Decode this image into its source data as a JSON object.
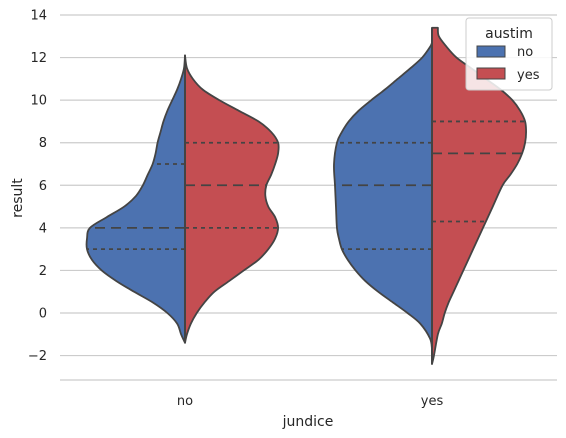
{
  "chart_data": {
    "type": "violin",
    "split": true,
    "xlabel": "jundice",
    "ylabel": "result",
    "ylim": [
      -3.2,
      14
    ],
    "yticks": [
      14,
      12,
      10,
      8,
      6,
      4,
      2,
      0,
      -2
    ],
    "ytick_labels": [
      "14",
      "12",
      "10",
      "8",
      "6",
      "4",
      "2",
      "0",
      "−2"
    ],
    "categories": [
      "no",
      "yes"
    ],
    "grid": "horizontal",
    "legend": {
      "title": "austim",
      "position": "top-right",
      "entries": [
        "no",
        "yes"
      ]
    },
    "colors": {
      "no": "#4c72b0",
      "yes": "#c44e52",
      "outline": "#444444"
    },
    "violins": [
      {
        "category": "no",
        "side": "left",
        "hue": "no",
        "ymin": -1.4,
        "ymax": 12.1,
        "quartiles": [
          3.0,
          4.0,
          7.0
        ],
        "profile": [
          [
            -1.4,
            0.0
          ],
          [
            -1.0,
            0.04
          ],
          [
            -0.5,
            0.08
          ],
          [
            0,
            0.18
          ],
          [
            0.5,
            0.33
          ],
          [
            1.0,
            0.52
          ],
          [
            1.5,
            0.7
          ],
          [
            2.0,
            0.85
          ],
          [
            2.5,
            0.95
          ],
          [
            3.0,
            1.0
          ],
          [
            3.5,
            1.0
          ],
          [
            4.0,
            0.97
          ],
          [
            4.5,
            0.8
          ],
          [
            5.0,
            0.62
          ],
          [
            5.5,
            0.5
          ],
          [
            6.0,
            0.43
          ],
          [
            6.5,
            0.38
          ],
          [
            7.0,
            0.33
          ],
          [
            7.5,
            0.3
          ],
          [
            8.0,
            0.28
          ],
          [
            8.5,
            0.25
          ],
          [
            9.0,
            0.22
          ],
          [
            9.5,
            0.18
          ],
          [
            10.0,
            0.13
          ],
          [
            10.5,
            0.08
          ],
          [
            11.0,
            0.04
          ],
          [
            11.5,
            0.01
          ],
          [
            12.1,
            0.0
          ]
        ]
      },
      {
        "category": "no",
        "side": "right",
        "hue": "yes",
        "ymin": -1.4,
        "ymax": 12.1,
        "quartiles": [
          4.0,
          6.0,
          8.0
        ],
        "profile": [
          [
            -1.4,
            0.0
          ],
          [
            -1.0,
            0.02
          ],
          [
            -0.5,
            0.06
          ],
          [
            0,
            0.12
          ],
          [
            0.5,
            0.2
          ],
          [
            1.0,
            0.3
          ],
          [
            1.5,
            0.45
          ],
          [
            2.0,
            0.6
          ],
          [
            2.5,
            0.75
          ],
          [
            3.0,
            0.85
          ],
          [
            3.5,
            0.92
          ],
          [
            4.0,
            0.95
          ],
          [
            4.5,
            0.92
          ],
          [
            5.0,
            0.85
          ],
          [
            5.5,
            0.82
          ],
          [
            6.0,
            0.83
          ],
          [
            6.5,
            0.88
          ],
          [
            7.0,
            0.92
          ],
          [
            7.5,
            0.95
          ],
          [
            8.0,
            0.95
          ],
          [
            8.5,
            0.88
          ],
          [
            9.0,
            0.75
          ],
          [
            9.5,
            0.55
          ],
          [
            10.0,
            0.35
          ],
          [
            10.5,
            0.18
          ],
          [
            11.0,
            0.08
          ],
          [
            11.5,
            0.02
          ],
          [
            12.1,
            0.0
          ]
        ]
      },
      {
        "category": "yes",
        "side": "left",
        "hue": "no",
        "ymin": -1.7,
        "ymax": 12.7,
        "quartiles": [
          3.0,
          6.0,
          8.0
        ],
        "profile": [
          [
            -1.7,
            0.0
          ],
          [
            -1.2,
            0.02
          ],
          [
            -0.5,
            0.12
          ],
          [
            0,
            0.25
          ],
          [
            0.5,
            0.4
          ],
          [
            1.0,
            0.55
          ],
          [
            1.5,
            0.68
          ],
          [
            2.0,
            0.78
          ],
          [
            2.5,
            0.86
          ],
          [
            3.0,
            0.92
          ],
          [
            3.5,
            0.95
          ],
          [
            4.0,
            0.97
          ],
          [
            5.0,
            0.98
          ],
          [
            6.0,
            0.99
          ],
          [
            7.0,
            1.0
          ],
          [
            8.0,
            0.97
          ],
          [
            8.5,
            0.92
          ],
          [
            9.0,
            0.85
          ],
          [
            9.5,
            0.75
          ],
          [
            10.0,
            0.62
          ],
          [
            10.5,
            0.48
          ],
          [
            11.0,
            0.35
          ],
          [
            11.5,
            0.22
          ],
          [
            12.0,
            0.1
          ],
          [
            12.5,
            0.02
          ],
          [
            12.7,
            0.0
          ]
        ]
      },
      {
        "category": "yes",
        "side": "right",
        "hue": "yes",
        "ymin": -2.4,
        "ymax": 13.4,
        "quartiles": [
          4.3,
          7.5,
          9.0
        ],
        "profile": [
          [
            -2.4,
            0.0
          ],
          [
            -2.0,
            0.02
          ],
          [
            -1.0,
            0.06
          ],
          [
            -0.5,
            0.1
          ],
          [
            0,
            0.13
          ],
          [
            0.5,
            0.17
          ],
          [
            1.0,
            0.22
          ],
          [
            1.5,
            0.27
          ],
          [
            2.0,
            0.32
          ],
          [
            3.0,
            0.42
          ],
          [
            4.0,
            0.52
          ],
          [
            5.0,
            0.62
          ],
          [
            6.0,
            0.72
          ],
          [
            6.5,
            0.8
          ],
          [
            7.0,
            0.87
          ],
          [
            7.5,
            0.92
          ],
          [
            8.0,
            0.95
          ],
          [
            8.5,
            0.96
          ],
          [
            9.0,
            0.95
          ],
          [
            9.5,
            0.9
          ],
          [
            10.0,
            0.82
          ],
          [
            10.5,
            0.7
          ],
          [
            11.0,
            0.55
          ],
          [
            11.5,
            0.4
          ],
          [
            12.0,
            0.25
          ],
          [
            12.5,
            0.15
          ],
          [
            13.0,
            0.07
          ],
          [
            13.4,
            0.06
          ]
        ]
      }
    ]
  }
}
